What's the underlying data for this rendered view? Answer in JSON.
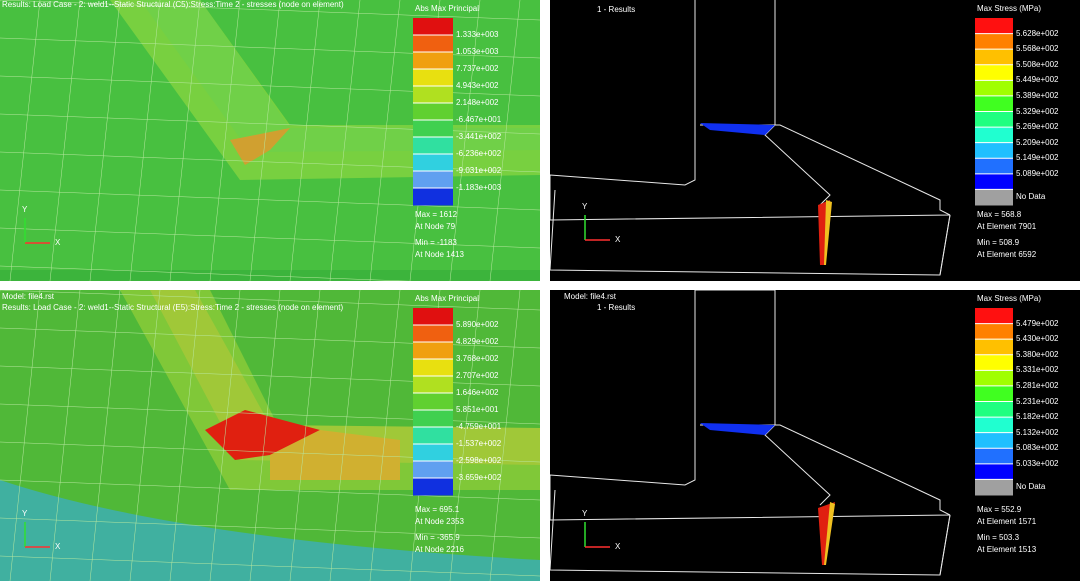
{
  "panels": [
    {
      "header": [
        "Results: Load Case - 2: weld1--Static Structural (C5):Stress:Time 2 - stresses (node on element)"
      ],
      "legend_title": "Abs Max Principal",
      "legend_labels": [
        "1.333e+003",
        "1.053e+003",
        "7.737e+002",
        "4.943e+002",
        "2.148e+002",
        "-6.467e+001",
        "-3.441e+002",
        "-6.236e+002",
        "-9.031e+002",
        "-1.183e+003"
      ],
      "info": [
        "Max = 1612",
        "At Node 79",
        "Min = -1183",
        "At Node 1413"
      ],
      "axes": [
        "Y",
        "X"
      ]
    },
    {
      "header": [
        "1 - Results"
      ],
      "legend_title": "Max Stress (MPa)",
      "legend_labels": [
        "5.628e+002",
        "5.568e+002",
        "5.508e+002",
        "5.449e+002",
        "5.389e+002",
        "5.329e+002",
        "5.269e+002",
        "5.209e+002",
        "5.149e+002",
        "5.089e+002",
        "No Data"
      ],
      "info": [
        "Max = 568.8",
        "At Element 7901",
        "Min = 508.9",
        "At Element 6592"
      ],
      "axes": [
        "Y",
        "X"
      ]
    },
    {
      "header": [
        "Model:   file4.rst",
        "Results:  Load Case - 2: weld1--Static Structural (E5):Stress:Time 2 - stresses (node on element)"
      ],
      "legend_title": "Abs Max Principal",
      "legend_labels": [
        "5.890e+002",
        "4.829e+002",
        "3.768e+002",
        "2.707e+002",
        "1.646e+002",
        "5.851e+001",
        "-4.759e+001",
        "-1.537e+002",
        "-2.598e+002",
        "-3.659e+002"
      ],
      "info": [
        "Max = 695.1",
        "At Node 2353",
        "Min = -365.9",
        "At Node 2216"
      ],
      "axes": [
        "Y",
        "X"
      ]
    },
    {
      "header": [
        "Model:    file4.rst",
        "1 - Results"
      ],
      "legend_title": "Max Stress (MPa)",
      "legend_labels": [
        "5.479e+002",
        "5.430e+002",
        "5.380e+002",
        "5.331e+002",
        "5.281e+002",
        "5.231e+002",
        "5.182e+002",
        "5.132e+002",
        "5.083e+002",
        "5.033e+002",
        "No Data"
      ],
      "info": [
        "Max = 552.9",
        "At Element 1571",
        "Min = 503.3",
        "At Element 1513"
      ],
      "axes": [
        "Y",
        "X"
      ]
    }
  ]
}
